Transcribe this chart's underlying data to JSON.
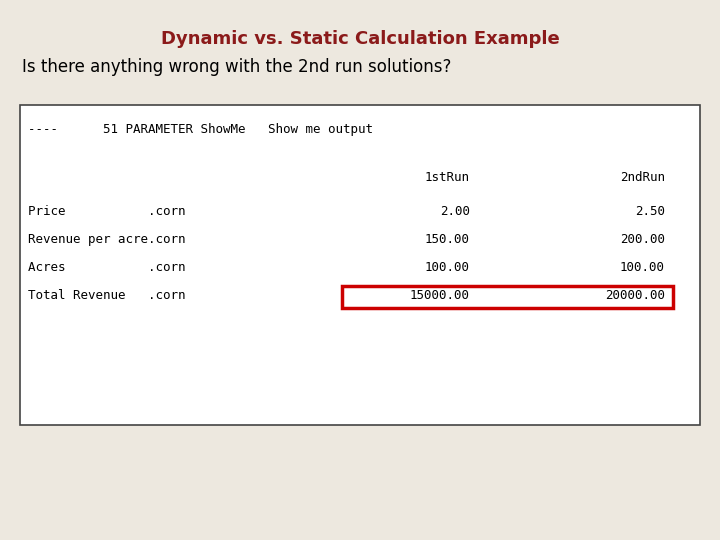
{
  "title": "Dynamic vs. Static Calculation Example",
  "subtitle": "Is there anything wrong with the 2nd run solutions?",
  "title_color": "#8B1A1A",
  "subtitle_color": "#000000",
  "background_color": "#EDE8DF",
  "box_bg_color": "#FFFFFF",
  "title_fontsize": 13,
  "subtitle_fontsize": 12,
  "header_line": "----      51 PARAMETER ShowMe   Show me output",
  "col_header_1": "1stRun",
  "col_header_2": "2ndRun",
  "rows": [
    [
      "Price           .corn",
      "2.00",
      "2.50"
    ],
    [
      "Revenue per acre.corn",
      "150.00",
      "200.00"
    ],
    [
      "Acres           .corn",
      "100.00",
      "100.00"
    ],
    [
      "Total Revenue   .corn",
      "15000.00",
      "20000.00"
    ]
  ],
  "highlight_row_index": 3,
  "highlight_color": "#CC0000",
  "mono_fontsize": 9,
  "box_border_color": "#444444"
}
